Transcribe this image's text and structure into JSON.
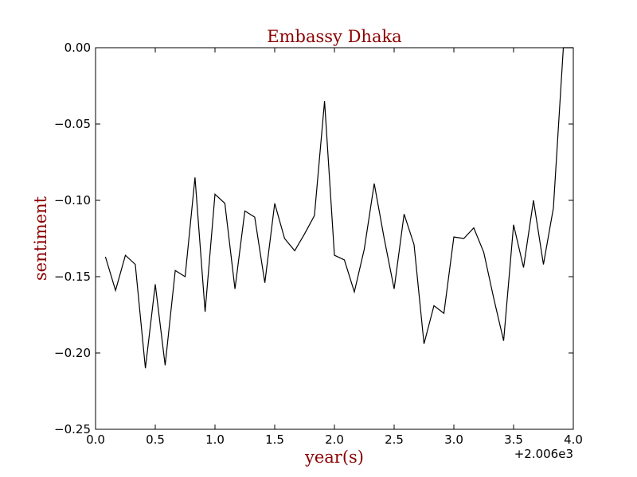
{
  "chart_data": {
    "type": "line",
    "title": "Embassy Dhaka",
    "xlabel": "year(s)",
    "ylabel": "sentiment",
    "x_offset_label": "+2.006e3",
    "xlim": [
      0.0,
      4.0
    ],
    "ylim": [
      -0.25,
      0.0
    ],
    "xticks": [
      "0.0",
      "0.5",
      "1.0",
      "1.5",
      "2.0",
      "2.5",
      "3.0",
      "3.5",
      "4.0"
    ],
    "yticks": [
      "0.00",
      "−0.05",
      "−0.10",
      "−0.15",
      "−0.20",
      "−0.25"
    ],
    "xtick_values": [
      0.0,
      0.5,
      1.0,
      1.5,
      2.0,
      2.5,
      3.0,
      3.5,
      4.0
    ],
    "ytick_values": [
      0.0,
      -0.05,
      -0.1,
      -0.15,
      -0.2,
      -0.25
    ],
    "grid": false,
    "line_color": "#000000",
    "title_color": "#8b0000",
    "series": [
      {
        "x": [
          0.083,
          0.167,
          0.25,
          0.333,
          0.417,
          0.5,
          0.583,
          0.667,
          0.75,
          0.833,
          0.917,
          1.0,
          1.083,
          1.167,
          1.25,
          1.333,
          1.417,
          1.5,
          1.583,
          1.667,
          1.75,
          1.833,
          1.917,
          2.0,
          2.083,
          2.167,
          2.25,
          2.333,
          2.417,
          2.5,
          2.583,
          2.667,
          2.75,
          2.833,
          2.917,
          3.0,
          3.083,
          3.167,
          3.25,
          3.333,
          3.417,
          3.5,
          3.583,
          3.667,
          3.75,
          3.833,
          3.917,
          4.0
        ],
        "y": [
          -0.137,
          -0.159,
          -0.136,
          -0.142,
          -0.21,
          -0.155,
          -0.208,
          -0.146,
          -0.15,
          -0.085,
          -0.173,
          -0.096,
          -0.102,
          -0.158,
          -0.107,
          -0.111,
          -0.154,
          -0.102,
          -0.125,
          -0.133,
          -0.122,
          -0.11,
          -0.035,
          -0.136,
          -0.139,
          -0.16,
          -0.132,
          -0.089,
          -0.125,
          -0.158,
          -0.109,
          -0.129,
          -0.194,
          -0.169,
          -0.174,
          -0.124,
          -0.125,
          -0.118,
          -0.134,
          -0.164,
          -0.192,
          -0.116,
          -0.144,
          -0.1,
          -0.142,
          -0.105,
          0.0,
          0.0
        ]
      }
    ]
  }
}
